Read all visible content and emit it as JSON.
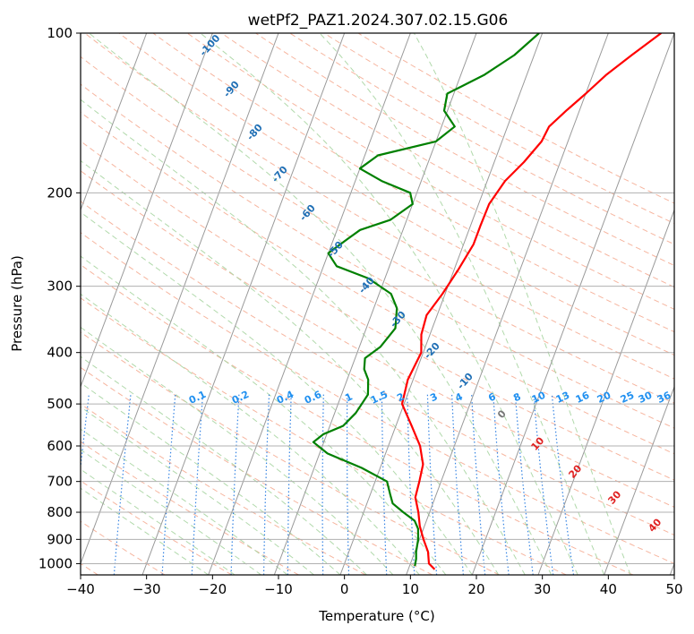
{
  "chart_data": {
    "type": "line",
    "title": "wetPf2_PAZ1.2024.307.02.15.G06",
    "xlabel": "Temperature (°C)",
    "ylabel": "Pressure (hPa)",
    "xlim": [
      -40,
      50
    ],
    "ylim": [
      1050,
      100
    ],
    "y_scale": "log",
    "grid": true,
    "x_ticks": [
      -40,
      -30,
      -20,
      -10,
      0,
      10,
      20,
      30,
      40,
      50
    ],
    "x_tick_labels": [
      "−40",
      "−30",
      "−20",
      "−10",
      "0",
      "10",
      "20",
      "30",
      "40",
      "50"
    ],
    "y_ticks": [
      100,
      200,
      300,
      400,
      500,
      600,
      700,
      800,
      900,
      1000
    ],
    "y_tick_labels": [
      "100",
      "200",
      "300",
      "400",
      "500",
      "600",
      "700",
      "800",
      "900",
      "1000"
    ],
    "series": [
      {
        "role": "temperature",
        "color": "#ff0000",
        "points": [
          [
            1025,
            14.0
          ],
          [
            1000,
            12.8
          ],
          [
            950,
            12.0
          ],
          [
            900,
            10.6
          ],
          [
            850,
            9.3
          ],
          [
            800,
            8.3
          ],
          [
            750,
            7.0
          ],
          [
            700,
            6.7
          ],
          [
            650,
            6.3
          ],
          [
            600,
            4.8
          ],
          [
            550,
            2.4
          ],
          [
            500,
            -0.3
          ],
          [
            450,
            -0.8
          ],
          [
            400,
            -0.3
          ],
          [
            370,
            -1.3
          ],
          [
            340,
            -1.6
          ],
          [
            310,
            -0.4
          ],
          [
            280,
            0.6
          ],
          [
            250,
            1.5
          ],
          [
            230,
            1.5
          ],
          [
            210,
            1.6
          ],
          [
            190,
            2.7
          ],
          [
            175,
            4.5
          ],
          [
            160,
            6.0
          ],
          [
            150,
            6.3
          ],
          [
            140,
            8.0
          ],
          [
            130,
            10.0
          ],
          [
            120,
            12.0
          ],
          [
            110,
            14.8
          ],
          [
            100,
            18.0
          ]
        ]
      },
      {
        "role": "dewpoint",
        "color": "#008000",
        "points": [
          [
            1010,
            10.8
          ],
          [
            980,
            10.6
          ],
          [
            950,
            10.2
          ],
          [
            900,
            9.8
          ],
          [
            860,
            9.2
          ],
          [
            830,
            8.2
          ],
          [
            800,
            6.0
          ],
          [
            770,
            3.9
          ],
          [
            740,
            3.0
          ],
          [
            700,
            1.8
          ],
          [
            660,
            -2.8
          ],
          [
            620,
            -8.8
          ],
          [
            590,
            -11.6
          ],
          [
            570,
            -10.5
          ],
          [
            550,
            -8.0
          ],
          [
            520,
            -6.8
          ],
          [
            480,
            -6.0
          ],
          [
            450,
            -6.8
          ],
          [
            430,
            -8.0
          ],
          [
            410,
            -8.5
          ],
          [
            390,
            -6.8
          ],
          [
            360,
            -5.6
          ],
          [
            330,
            -6.5
          ],
          [
            310,
            -8.2
          ],
          [
            290,
            -12.5
          ],
          [
            275,
            -18.0
          ],
          [
            260,
            -20.0
          ],
          [
            245,
            -18.0
          ],
          [
            235,
            -16.5
          ],
          [
            225,
            -12.5
          ],
          [
            210,
            -10.0
          ],
          [
            200,
            -11.0
          ],
          [
            190,
            -16.0
          ],
          [
            180,
            -20.0
          ],
          [
            170,
            -18.0
          ],
          [
            160,
            -10.0
          ],
          [
            150,
            -8.0
          ],
          [
            140,
            -10.5
          ],
          [
            130,
            -11.0
          ],
          [
            120,
            -6.5
          ],
          [
            110,
            -3.0
          ],
          [
            100,
            -0.5
          ]
        ]
      }
    ],
    "dry_adiabat_labels": [
      "-100",
      "-90",
      "-80",
      "-70",
      "-60",
      "-50",
      "-40",
      "-30",
      "-20",
      "-10"
    ],
    "moist_adiabat_labels": [
      "0",
      "10",
      "20",
      "30",
      "40"
    ],
    "mixing_ratio_labels": [
      "0.1",
      "0.2",
      "0.4",
      "0.6",
      "1",
      "1.5",
      "2",
      "3",
      "4",
      "6",
      "8",
      "10",
      "13",
      "16",
      "20",
      "25",
      "30",
      "36"
    ],
    "mixing_ratio_values": [
      0.1,
      0.2,
      0.4,
      0.6,
      1,
      1.5,
      2,
      3,
      4,
      6,
      8,
      10,
      13,
      16,
      20,
      25,
      30,
      36
    ],
    "colors": {
      "dry_adiabat": "#f5a88e",
      "moist_adiabat": "#a8d5a2",
      "mixing_ratio": "#1f77e0",
      "isotherm": "#9a9a9a",
      "dry_label": "#1f6fb5",
      "moist_label": "#e02020",
      "mixing_label": "#2090f0"
    }
  }
}
